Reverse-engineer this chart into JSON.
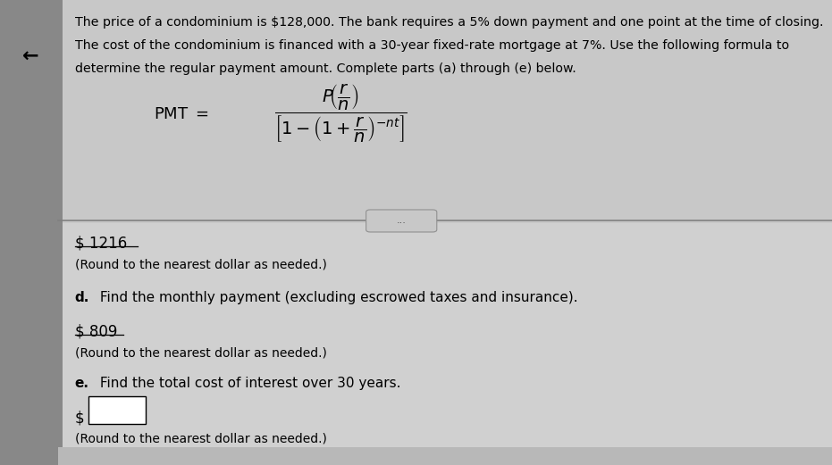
{
  "bg_color_top": "#c8c8c8",
  "bg_color_bottom": "#d0d0d0",
  "bg_color_left": "#888888",
  "header_text_line1": "The price of a condominium is $128,000. The bank requires a 5% down payment and one point at the time of closing.",
  "header_text_line2": "The cost of the condominium is financed with a 30-year fixed-rate mortgage at 7%. Use the following formula to",
  "header_text_line3": "determine the regular payment amount. Complete parts (a) through (e) below.",
  "answer1_label": "$ 1216",
  "answer1_note": "(Round to the nearest dollar as needed.)",
  "part_d_bold": "d.",
  "part_d_text": " Find the monthly payment (excluding escrowed taxes and insurance).",
  "answer2_label": "$ 809",
  "answer2_note": "(Round to the nearest dollar as needed.)",
  "part_e_bold": "e.",
  "part_e_text": " Find the total cost of interest over 30 years.",
  "answer3_prefix": "$",
  "answer3_note": "(Round to the nearest dollar as needed.)",
  "arrow_symbol": "←",
  "dots": "...",
  "font_size_header": 10.2,
  "font_size_body": 11,
  "font_size_answer": 12,
  "font_size_formula": 13
}
